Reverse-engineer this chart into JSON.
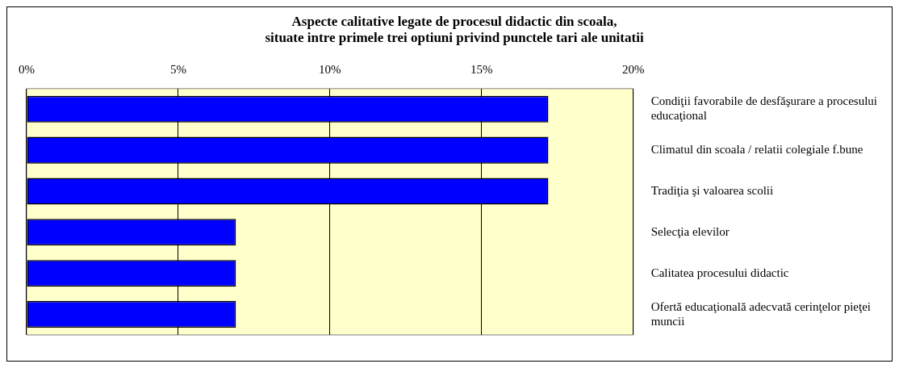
{
  "chart_data": {
    "type": "bar",
    "orientation": "horizontal",
    "title": "Aspecte calitative legate de procesul didactic din scoala,\nsituate intre primele trei optiuni privind punctele tari ale unitatii",
    "categories": [
      "Condiţii favorabile de desfăşurare a procesului educaţional",
      "Climatul din scoala / relatii colegiale f.bune",
      "Tradiţia şi valoarea scolii",
      "Selecţia elevilor",
      "Calitatea procesului didactic",
      "Ofertă educaţională adecvată cerinţelor pieţei muncii"
    ],
    "values": [
      17.2,
      17.2,
      17.2,
      6.9,
      6.9,
      6.9
    ],
    "color": "#0000ff",
    "xlim": [
      0,
      20
    ],
    "xticks": [
      {
        "value": 0,
        "label": "0%"
      },
      {
        "value": 5,
        "label": "5%"
      },
      {
        "value": 10,
        "label": "10%"
      },
      {
        "value": 15,
        "label": "15%"
      },
      {
        "value": 20,
        "label": "20%"
      }
    ],
    "grid": "x",
    "legend": false
  }
}
